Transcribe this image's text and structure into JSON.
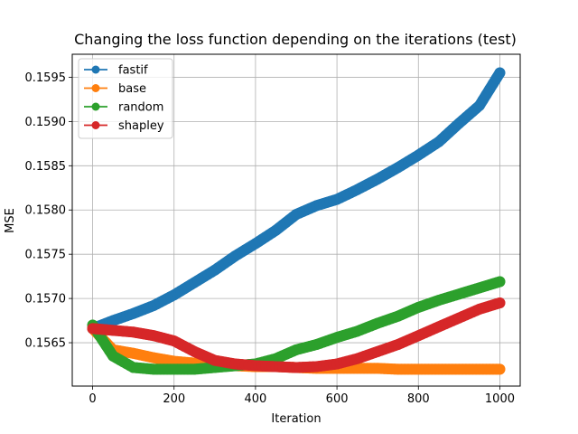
{
  "chart_data": {
    "type": "line",
    "title": "Changing the loss function depending on the iterations (test)",
    "xlabel": "Iteration",
    "ylabel": "MSE",
    "xlim": [
      -50,
      1050
    ],
    "ylim": [
      0.15601,
      0.15976
    ],
    "xticks": [
      0,
      200,
      400,
      600,
      800,
      1000
    ],
    "xtick_labels": [
      "0",
      "200",
      "400",
      "600",
      "800",
      "1000"
    ],
    "yticks": [
      0.1565,
      0.157,
      0.1575,
      0.158,
      0.1585,
      0.159,
      0.1595
    ],
    "ytick_labels": [
      "0.1565",
      "0.1570",
      "0.1575",
      "0.1580",
      "0.1585",
      "0.1590",
      "0.1595"
    ],
    "grid": true,
    "legend_position": "upper-left",
    "x": [
      0,
      50,
      100,
      150,
      200,
      250,
      300,
      350,
      400,
      450,
      500,
      550,
      600,
      650,
      700,
      750,
      800,
      850,
      900,
      950,
      1000
    ],
    "series": [
      {
        "name": "fastif",
        "color": "#1f77b4",
        "values": [
          0.15666,
          0.15675,
          0.15683,
          0.15692,
          0.15704,
          0.15718,
          0.15732,
          0.15748,
          0.15762,
          0.15777,
          0.15795,
          0.15805,
          0.15812,
          0.15823,
          0.15835,
          0.15848,
          0.15862,
          0.15877,
          0.15898,
          0.15918,
          0.15955
        ]
      },
      {
        "name": "base",
        "color": "#ff7f0e",
        "values": [
          0.15666,
          0.15642,
          0.15638,
          0.15633,
          0.15629,
          0.15627,
          0.15625,
          0.15624,
          0.15623,
          0.15623,
          0.15622,
          0.15621,
          0.15621,
          0.15621,
          0.15621,
          0.1562,
          0.1562,
          0.1562,
          0.1562,
          0.1562,
          0.1562
        ]
      },
      {
        "name": "random",
        "color": "#2ca02c",
        "values": [
          0.1567,
          0.15635,
          0.15622,
          0.1562,
          0.1562,
          0.1562,
          0.15622,
          0.15624,
          0.15626,
          0.15632,
          0.15642,
          0.15648,
          0.15656,
          0.15663,
          0.15672,
          0.1568,
          0.1569,
          0.15698,
          0.15705,
          0.15712,
          0.15719
        ]
      },
      {
        "name": "shapley",
        "color": "#d62728",
        "values": [
          0.15666,
          0.15664,
          0.15662,
          0.15658,
          0.15652,
          0.1564,
          0.1563,
          0.15626,
          0.15624,
          0.15623,
          0.15622,
          0.15623,
          0.15626,
          0.15632,
          0.1564,
          0.15648,
          0.15658,
          0.15668,
          0.15678,
          0.15688,
          0.15695
        ]
      }
    ]
  }
}
